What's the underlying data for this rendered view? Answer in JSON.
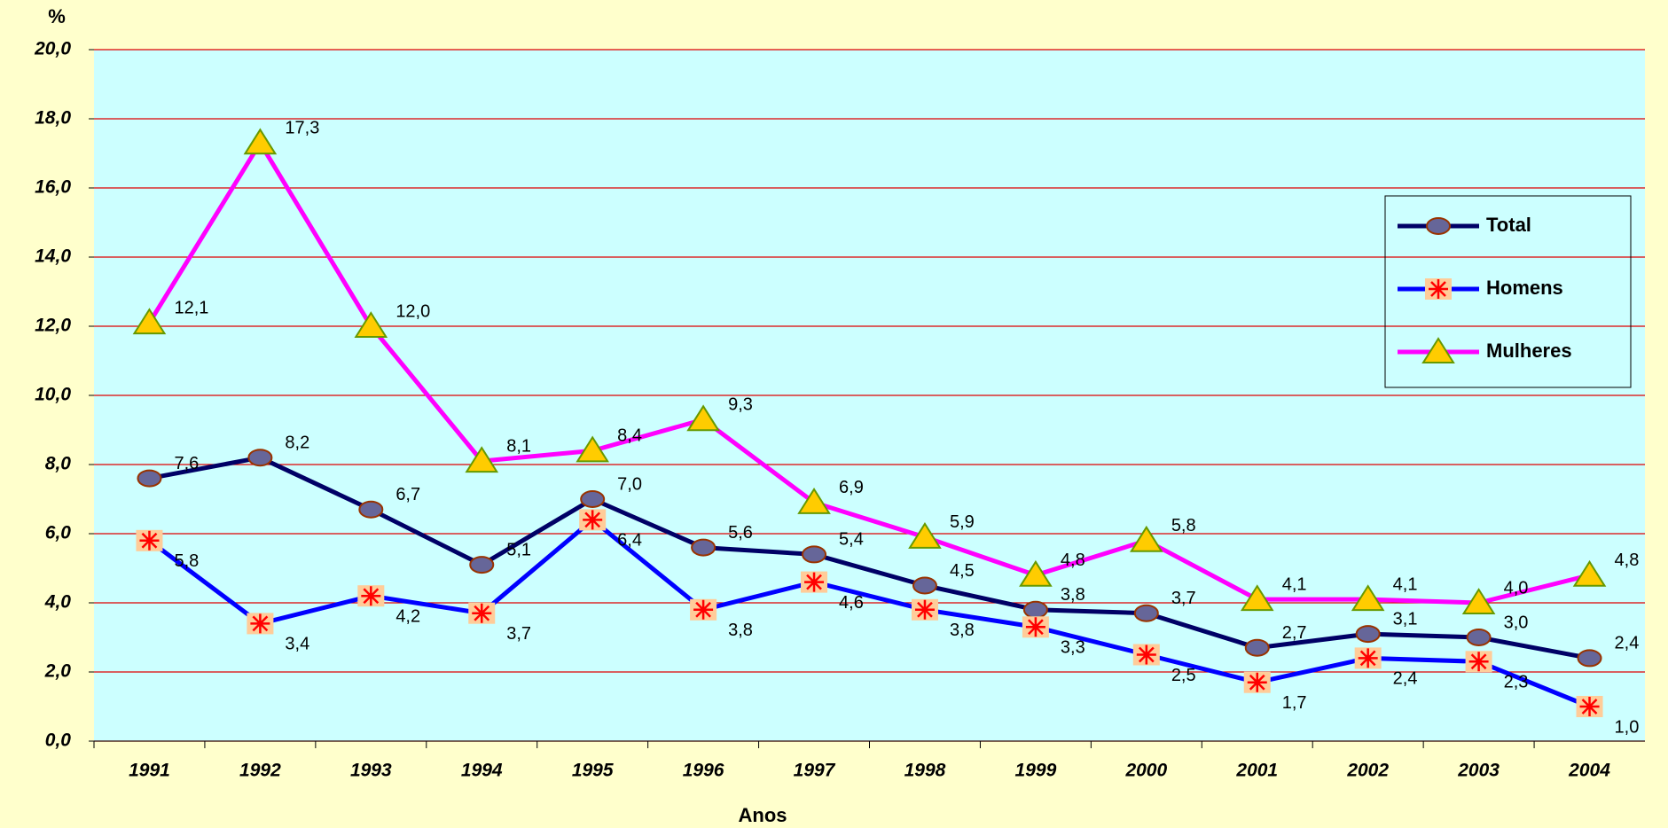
{
  "chart_data": {
    "type": "line",
    "y_label": "%",
    "x_label": "Anos",
    "categories": [
      "1991",
      "1992",
      "1993",
      "1994",
      "1995",
      "1996",
      "1997",
      "1998",
      "1999",
      "2000",
      "2001",
      "2002",
      "2003",
      "2004"
    ],
    "series": [
      {
        "name": "Total",
        "color": "#000066",
        "marker": "circle",
        "marker_color": "#666699",
        "values": [
          7.6,
          8.2,
          6.7,
          5.1,
          7.0,
          5.6,
          5.4,
          4.5,
          3.8,
          3.7,
          2.7,
          3.1,
          3.0,
          2.4
        ],
        "value_labels": [
          "7,6",
          "8,2",
          "6,7",
          "5,1",
          "7,0",
          "5,6",
          "5,4",
          "4,5",
          "3,8",
          "3,7",
          "2,7",
          "3,1",
          "3,0",
          "2,4"
        ]
      },
      {
        "name": "Homens",
        "color": "#0000ff",
        "marker": "star-square",
        "marker_color": "#ffcc99",
        "values": [
          5.8,
          3.4,
          4.2,
          3.7,
          6.4,
          3.8,
          4.6,
          3.8,
          3.3,
          2.5,
          1.7,
          2.4,
          2.3,
          1.0
        ],
        "value_labels": [
          "5,8",
          "3,4",
          "4,2",
          "3,7",
          "6,4",
          "3,8",
          "4,6",
          "3,8",
          "3,3",
          "2,5",
          "1,7",
          "2,4",
          "2,3",
          "1,0"
        ]
      },
      {
        "name": "Mulheres",
        "color": "#ff00ff",
        "marker": "triangle",
        "marker_color": "#ffcc00",
        "values": [
          12.1,
          17.3,
          12.0,
          8.1,
          8.4,
          9.3,
          6.9,
          5.9,
          4.8,
          5.8,
          4.1,
          4.1,
          4.0,
          4.8
        ],
        "value_labels": [
          "12,1",
          "17,3",
          "12,0",
          "8,1",
          "8,4",
          "9,3",
          "6,9",
          "5,9",
          "4,8",
          "5,8",
          "4,1",
          "4,1",
          "4,0",
          "4,8"
        ]
      }
    ],
    "ylim": [
      0,
      20
    ],
    "yticks": [
      {
        "value": 0,
        "label": "0,0"
      },
      {
        "value": 2,
        "label": "2,0"
      },
      {
        "value": 4,
        "label": "4,0"
      },
      {
        "value": 6,
        "label": "6,0"
      },
      {
        "value": 8,
        "label": "8,0"
      },
      {
        "value": 10,
        "label": "10,0"
      },
      {
        "value": 12,
        "label": "12,0"
      },
      {
        "value": 14,
        "label": "14,0"
      },
      {
        "value": 16,
        "label": "16,0"
      },
      {
        "value": 18,
        "label": "18,0"
      },
      {
        "value": 20,
        "label": "20,0"
      }
    ],
    "grid": true,
    "grid_color": "#e00000",
    "plot_background": "#ccffff",
    "legend": "right"
  }
}
